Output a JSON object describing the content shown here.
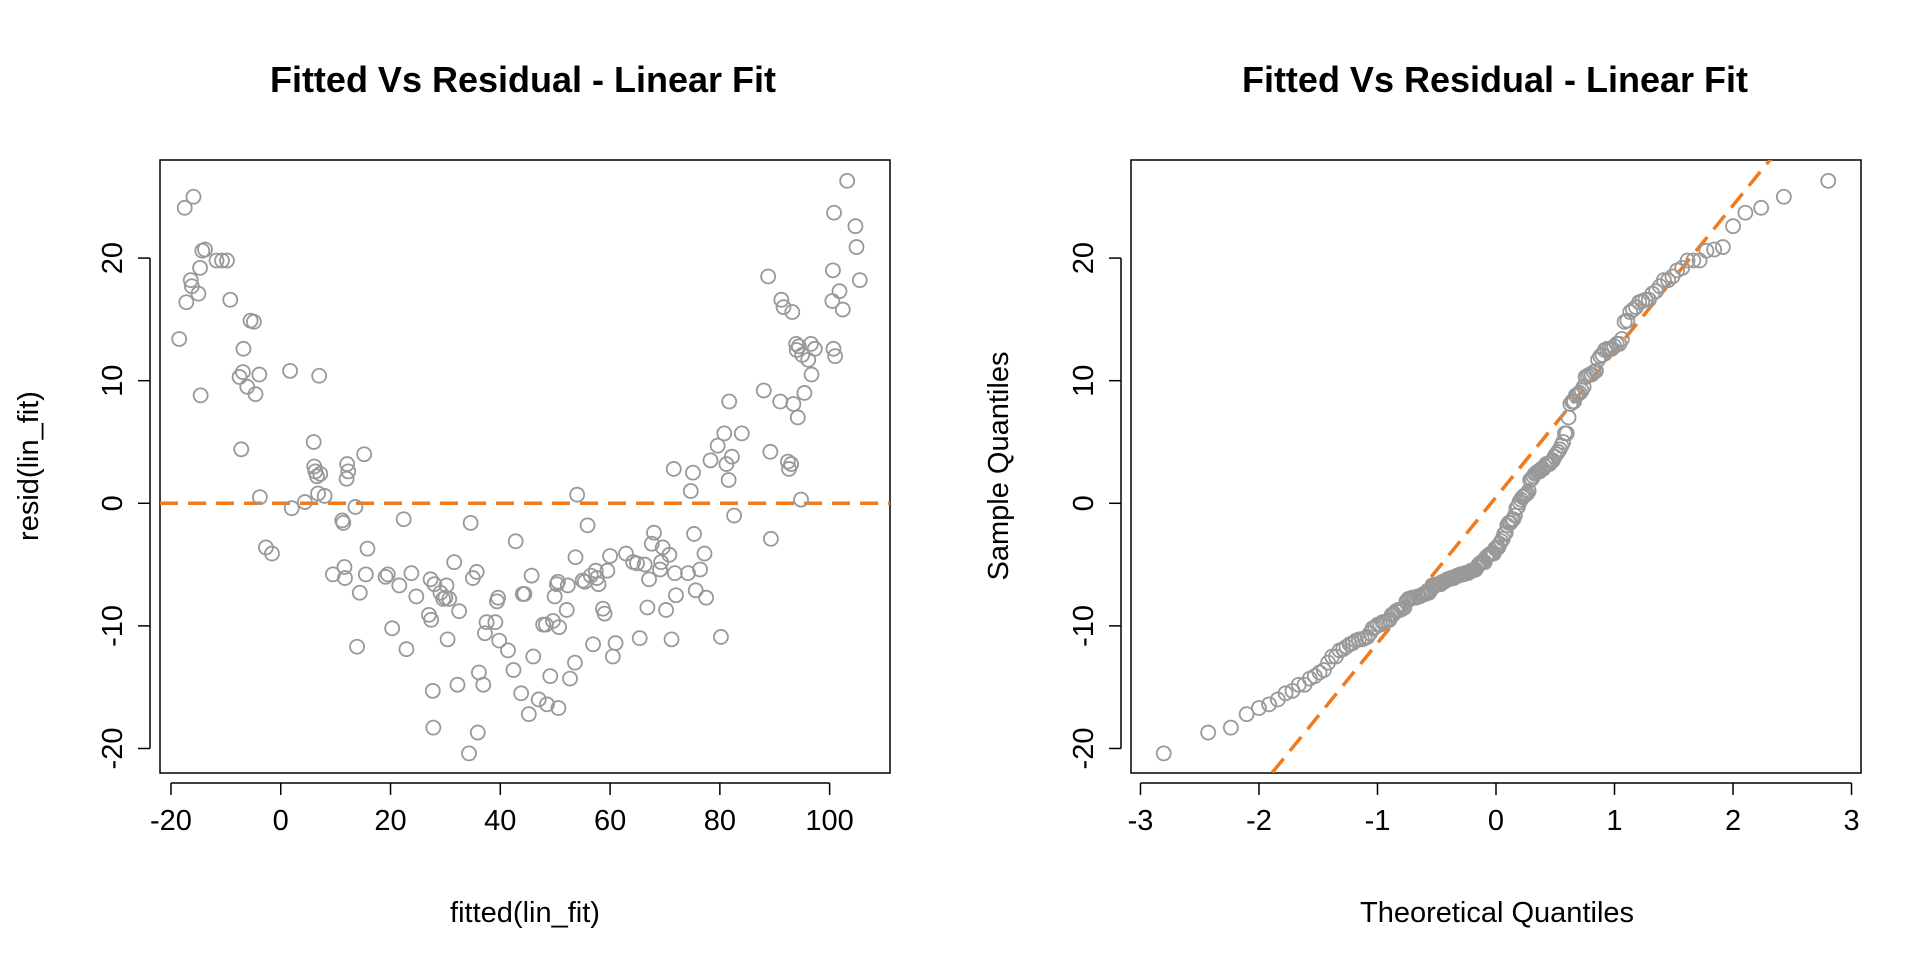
{
  "colors": {
    "points": "#999999",
    "reference_line": "#f07a1c"
  },
  "chart_data": [
    {
      "type": "scatter",
      "title": "Fitted Vs Residual - Linear Fit",
      "xlabel": "fitted(lin_fit)",
      "ylabel": "resid(lin_fit)",
      "xlim": [
        -22,
        111
      ],
      "ylim": [
        -22,
        28
      ],
      "x_ticks": [
        -20,
        0,
        20,
        40,
        60,
        80,
        100
      ],
      "y_ticks": [
        -20,
        -10,
        0,
        10,
        20
      ],
      "reference_line": {
        "orientation": "horizontal",
        "y": 0,
        "style": "dashed"
      },
      "grid": false,
      "legend": "none",
      "points": [
        [
          -18.5,
          13.4
        ],
        [
          -17.5,
          24.1
        ],
        [
          -17.2,
          16.4
        ],
        [
          -16.4,
          18.2
        ],
        [
          -16.2,
          17.7
        ],
        [
          -15.9,
          25
        ],
        [
          -15,
          17.1
        ],
        [
          -14.7,
          19.2
        ],
        [
          -14.6,
          8.8
        ],
        [
          -14.3,
          20.6
        ],
        [
          -13.8,
          20.7
        ],
        [
          -11.7,
          19.8
        ],
        [
          -10.7,
          19.8
        ],
        [
          -9.8,
          19.8
        ],
        [
          -9.2,
          16.6
        ],
        [
          -7.5,
          10.3
        ],
        [
          -7.2,
          4.4
        ],
        [
          -6.9,
          10.7
        ],
        [
          -6.8,
          12.6
        ],
        [
          -6.1,
          9.5
        ],
        [
          -5.5,
          14.9
        ],
        [
          -4.9,
          14.8
        ],
        [
          -4.6,
          8.9
        ],
        [
          -3.9,
          10.5
        ],
        [
          -3.8,
          0.5
        ],
        [
          -2.7,
          -3.6
        ],
        [
          -1.6,
          -4.1
        ],
        [
          1.7,
          10.8
        ],
        [
          2,
          -0.4
        ],
        [
          4.4,
          0.1
        ],
        [
          6,
          5
        ],
        [
          6.1,
          3
        ],
        [
          6.3,
          2.6
        ],
        [
          6.6,
          2.2
        ],
        [
          6.8,
          0.8
        ],
        [
          7,
          10.4
        ],
        [
          7.2,
          2.4
        ],
        [
          8,
          0.6
        ],
        [
          9.5,
          -5.8
        ],
        [
          11.2,
          -1.4
        ],
        [
          11.4,
          -1.6
        ],
        [
          11.6,
          -5.2
        ],
        [
          11.7,
          -6.1
        ],
        [
          12,
          2
        ],
        [
          12.1,
          3.2
        ],
        [
          12.3,
          2.6
        ],
        [
          13.6,
          -0.3
        ],
        [
          13.9,
          -11.7
        ],
        [
          14.4,
          -7.3
        ],
        [
          15.2,
          4
        ],
        [
          15.5,
          -5.8
        ],
        [
          15.8,
          -3.7
        ],
        [
          19.1,
          -6
        ],
        [
          19.5,
          -5.8
        ],
        [
          20.3,
          -10.2
        ],
        [
          21.6,
          -6.7
        ],
        [
          22.4,
          -1.3
        ],
        [
          22.9,
          -11.9
        ],
        [
          23.8,
          -5.7
        ],
        [
          24.7,
          -7.6
        ],
        [
          27,
          -9.1
        ],
        [
          27.3,
          -6.2
        ],
        [
          27.4,
          -9.5
        ],
        [
          27.7,
          -15.3
        ],
        [
          27.8,
          -18.3
        ],
        [
          28,
          -6.6
        ],
        [
          29.1,
          -7.3
        ],
        [
          29.6,
          -7.8
        ],
        [
          30,
          -7.7
        ],
        [
          30.2,
          -6.7
        ],
        [
          30.4,
          -11.1
        ],
        [
          30.7,
          -7.8
        ],
        [
          31.6,
          -4.8
        ],
        [
          32.2,
          -14.8
        ],
        [
          32.5,
          -8.8
        ],
        [
          34.3,
          -20.4
        ],
        [
          34.6,
          -1.6
        ],
        [
          35,
          -6.1
        ],
        [
          35.7,
          -5.6
        ],
        [
          35.9,
          -18.7
        ],
        [
          36.1,
          -13.8
        ],
        [
          36.9,
          -14.8
        ],
        [
          37.2,
          -10.6
        ],
        [
          37.5,
          -9.7
        ],
        [
          39.1,
          -9.7
        ],
        [
          39.4,
          -8
        ],
        [
          39.6,
          -7.7
        ],
        [
          39.8,
          -11.2
        ],
        [
          41.4,
          -12
        ],
        [
          42.4,
          -13.6
        ],
        [
          42.8,
          -3.1
        ],
        [
          43.8,
          -15.5
        ],
        [
          44.1,
          -7.4
        ],
        [
          44.4,
          -7.4
        ],
        [
          45.2,
          -17.2
        ],
        [
          45.7,
          -5.9
        ],
        [
          46,
          -12.5
        ],
        [
          47,
          -16
        ],
        [
          47.8,
          -9.9
        ],
        [
          48.3,
          -9.9
        ],
        [
          48.5,
          -16.4
        ],
        [
          49.1,
          -14.1
        ],
        [
          49.6,
          -9.6
        ],
        [
          49.9,
          -7.6
        ],
        [
          50.3,
          -6.6
        ],
        [
          50.5,
          -6.4
        ],
        [
          50.6,
          -16.7
        ],
        [
          50.7,
          -10.1
        ],
        [
          52.1,
          -8.7
        ],
        [
          52.3,
          -6.7
        ],
        [
          52.7,
          -14.3
        ],
        [
          53.6,
          -13
        ],
        [
          53.7,
          -4.4
        ],
        [
          54,
          0.7
        ],
        [
          55,
          -6.3
        ],
        [
          55.4,
          -6.4
        ],
        [
          55.9,
          -1.8
        ],
        [
          56.5,
          -5.9
        ],
        [
          56.9,
          -11.5
        ],
        [
          57.4,
          -5.5
        ],
        [
          57.6,
          -6.1
        ],
        [
          57.9,
          -6.6
        ],
        [
          58.7,
          -8.6
        ],
        [
          59,
          -9
        ],
        [
          59.5,
          -5.5
        ],
        [
          60,
          -4.3
        ],
        [
          60.5,
          -12.5
        ],
        [
          61,
          -11.4
        ],
        [
          62.9,
          -4.1
        ],
        [
          64.2,
          -4.8
        ],
        [
          64.9,
          -4.9
        ],
        [
          65.4,
          -11
        ],
        [
          66.3,
          -5
        ],
        [
          66.8,
          -8.5
        ],
        [
          67.1,
          -6.2
        ],
        [
          67.6,
          -3.3
        ],
        [
          68,
          -2.4
        ],
        [
          69.1,
          -5.4
        ],
        [
          69.3,
          -4.8
        ],
        [
          69.6,
          -3.6
        ],
        [
          70.2,
          -8.7
        ],
        [
          70.8,
          -4.2
        ],
        [
          71.2,
          -11.1
        ],
        [
          71.6,
          2.8
        ],
        [
          71.8,
          -5.7
        ],
        [
          72,
          -7.5
        ],
        [
          74.2,
          -5.7
        ],
        [
          74.7,
          1
        ],
        [
          75.1,
          2.5
        ],
        [
          75.3,
          -2.5
        ],
        [
          75.6,
          -7.1
        ],
        [
          76.4,
          -5.4
        ],
        [
          77.2,
          -4.1
        ],
        [
          77.5,
          -7.7
        ],
        [
          78.3,
          3.5
        ],
        [
          79.6,
          4.7
        ],
        [
          80.2,
          -10.9
        ],
        [
          80.8,
          5.7
        ],
        [
          81.2,
          3.2
        ],
        [
          81.6,
          1.9
        ],
        [
          81.7,
          8.3
        ],
        [
          82.2,
          3.8
        ],
        [
          82.6,
          -1
        ],
        [
          84,
          5.7
        ],
        [
          88,
          9.2
        ],
        [
          88.8,
          18.5
        ],
        [
          89.2,
          4.2
        ],
        [
          89.3,
          -2.9
        ],
        [
          91,
          8.3
        ],
        [
          91.2,
          16.6
        ],
        [
          91.6,
          16
        ],
        [
          92.4,
          3.4
        ],
        [
          92.6,
          2.8
        ],
        [
          93,
          3.2
        ],
        [
          93.2,
          15.6
        ],
        [
          93.4,
          8.1
        ],
        [
          93.9,
          13
        ],
        [
          94,
          12.5
        ],
        [
          94.2,
          7
        ],
        [
          94.4,
          12.8
        ],
        [
          94.8,
          0.3
        ],
        [
          95,
          12.1
        ],
        [
          95.4,
          9
        ],
        [
          96.1,
          11.7
        ],
        [
          96.6,
          13
        ],
        [
          96.7,
          10.5
        ],
        [
          97.3,
          12.6
        ],
        [
          100.5,
          16.5
        ],
        [
          100.6,
          19
        ],
        [
          100.7,
          12.6
        ],
        [
          100.8,
          23.7
        ],
        [
          101,
          12
        ],
        [
          101.8,
          17.3
        ],
        [
          102.4,
          15.8
        ],
        [
          103.2,
          26.3
        ],
        [
          104.7,
          22.6
        ],
        [
          104.9,
          20.9
        ],
        [
          105.5,
          18.2
        ]
      ]
    },
    {
      "type": "scatter",
      "title": "Fitted Vs Residual - Linear Fit",
      "xlabel": "Theoretical Quantiles",
      "ylabel": "Sample Quantiles",
      "xlim": [
        -3.08,
        3.08
      ],
      "ylim": [
        -22,
        28
      ],
      "x_ticks": [
        -3,
        -2,
        -1,
        0,
        1,
        2,
        3
      ],
      "y_ticks": [
        -20,
        -10,
        0,
        10,
        20
      ],
      "reference_line": {
        "orientation": "qq-line",
        "intercept": 0.5,
        "slope": 11.9,
        "style": "dashed"
      },
      "grid": false,
      "legend": "none",
      "residual_values": [
        -18.5,
        13.4,
        -17.5,
        24.1,
        -17.2,
        16.4,
        -16.4,
        18.2,
        -16.2,
        17.7,
        -15.9,
        25
      ]
    }
  ]
}
